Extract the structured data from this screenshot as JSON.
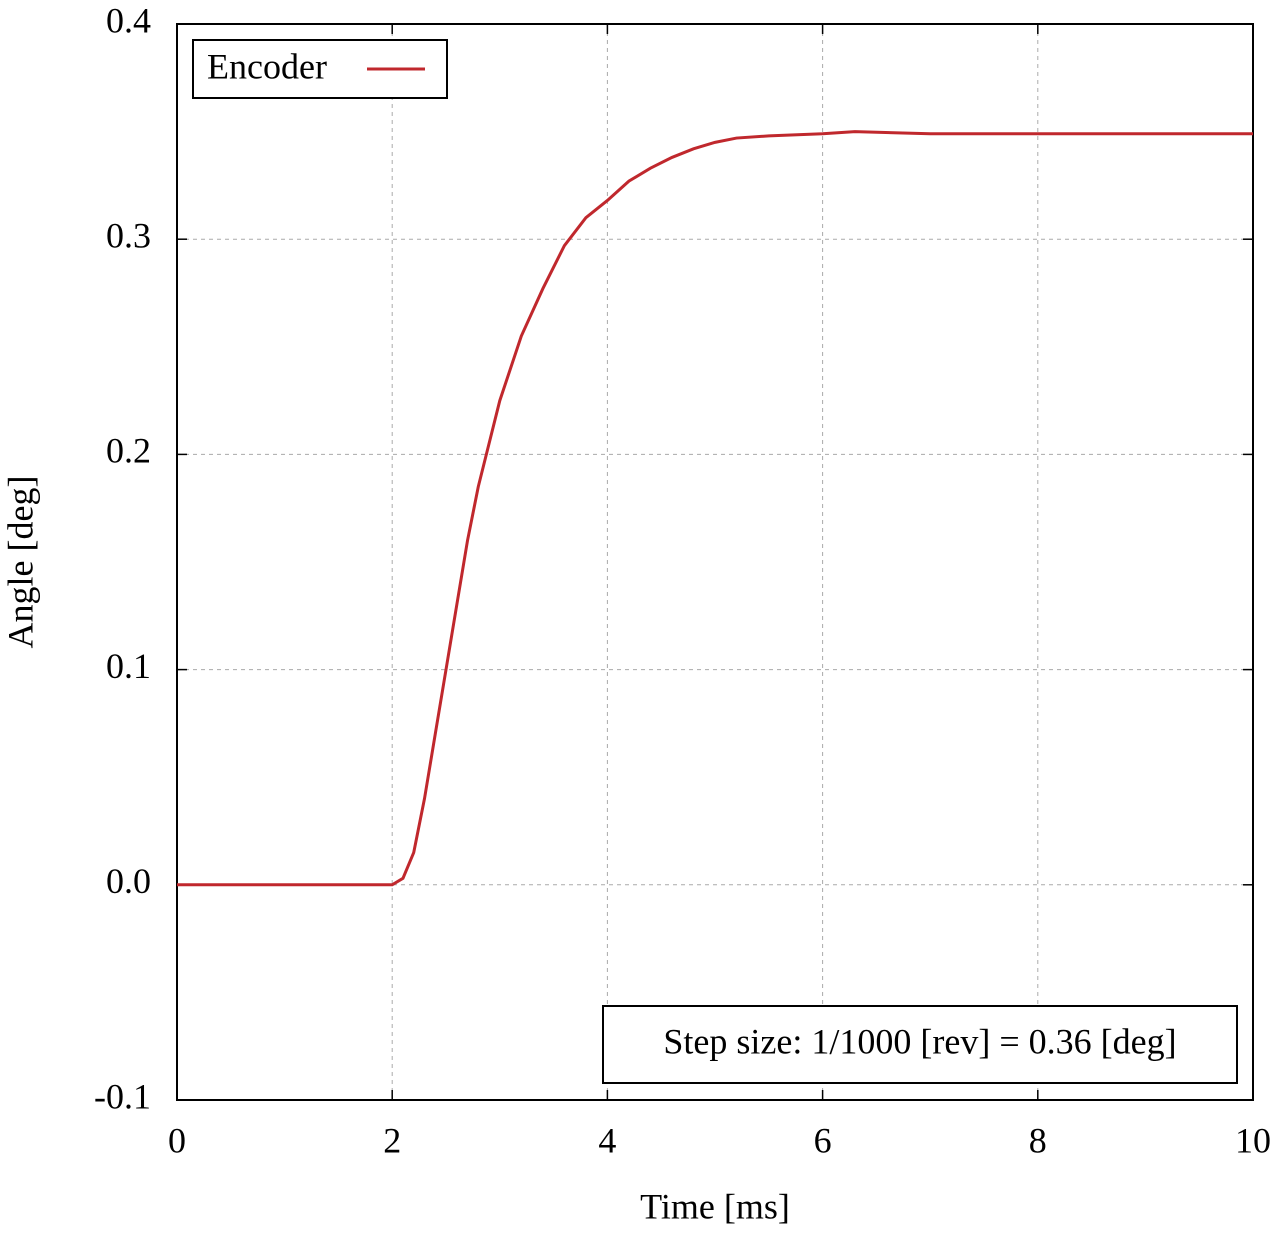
{
  "chart_data": {
    "type": "line",
    "xlabel": "Time [ms]",
    "ylabel": "Angle [deg]",
    "annotation": "Step size: 1/1000 [rev] = 0.36 [deg]",
    "x": [
      0,
      0.5,
      1,
      1.5,
      2,
      2.1,
      2.2,
      2.3,
      2.4,
      2.5,
      2.6,
      2.7,
      2.8,
      2.9,
      3.0,
      3.2,
      3.4,
      3.6,
      3.8,
      4.0,
      4.2,
      4.4,
      4.6,
      4.8,
      5.0,
      5.2,
      5.5,
      6.0,
      6.3,
      7,
      8,
      9,
      10
    ],
    "series": [
      {
        "name": "Encoder",
        "color": "#c0282d",
        "values": [
          0,
          0,
          0,
          0,
          0,
          0.003,
          0.015,
          0.04,
          0.07,
          0.1,
          0.13,
          0.16,
          0.185,
          0.205,
          0.225,
          0.255,
          0.277,
          0.297,
          0.31,
          0.318,
          0.327,
          0.333,
          0.338,
          0.342,
          0.345,
          0.347,
          0.348,
          0.349,
          0.35,
          0.349,
          0.349,
          0.349,
          0.349
        ]
      }
    ],
    "xlim": [
      0,
      10
    ],
    "xticks": [
      0,
      2,
      4,
      6,
      8,
      10
    ],
    "ylim": [
      -0.1,
      0.4
    ],
    "yticks": [
      -0.1,
      {
        "value": 0,
        "label": "0.0"
      },
      0.1,
      0.2,
      0.3,
      0.4
    ],
    "grid": true,
    "legend": "upper left"
  }
}
